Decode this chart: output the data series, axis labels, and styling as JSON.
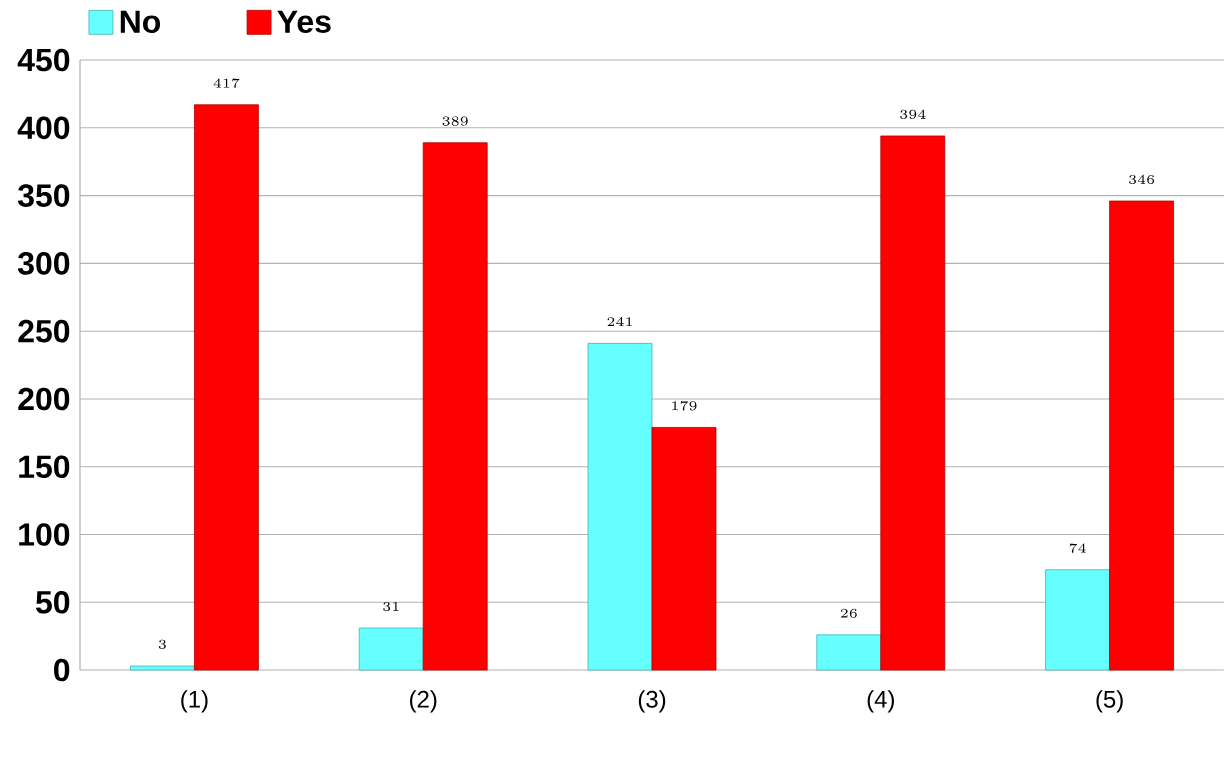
{
  "chart_data": {
    "type": "bar",
    "categories": [
      "(1)",
      "(2)",
      "(3)",
      "(4)",
      "(5)"
    ],
    "series": [
      {
        "name": "No",
        "color": "#66ffff",
        "values": [
          3,
          31,
          241,
          26,
          74
        ]
      },
      {
        "name": "Yes",
        "color": "#ff0000",
        "values": [
          417,
          389,
          179,
          394,
          346
        ]
      }
    ],
    "ylim": [
      0,
      450
    ],
    "yticks": [
      0,
      50,
      100,
      150,
      200,
      250,
      300,
      350,
      400,
      450
    ],
    "grid": "y",
    "legend": "top left",
    "data_labels": true
  }
}
